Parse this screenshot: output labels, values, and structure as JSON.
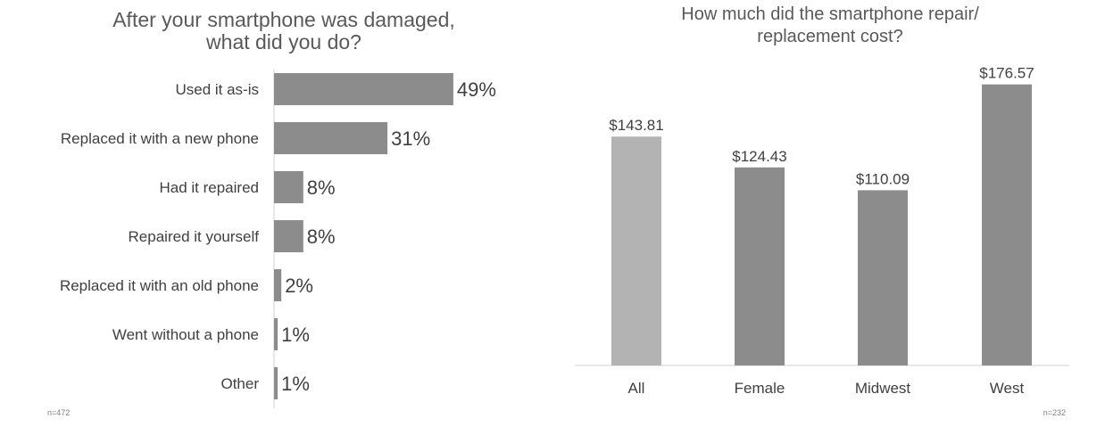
{
  "colors": {
    "bar": "#8c8c8c",
    "highlight_bar": "#b3b3b3",
    "axis": "#d0d0d0",
    "text": "#404040"
  },
  "chart_data": [
    {
      "type": "bar",
      "orientation": "horizontal",
      "title": "After your smartphone was damaged,\nwhat did you do?",
      "categories": [
        "Used it as-is",
        "Replaced it with a new phone",
        "Had it repaired",
        "Repaired it yourself",
        "Replaced it with an old phone",
        "Went without a phone",
        "Other"
      ],
      "values": [
        49,
        31,
        8,
        8,
        2,
        1,
        1
      ],
      "value_labels": [
        "49%",
        "31%",
        "8%",
        "8%",
        "2%",
        "1%",
        "1%"
      ],
      "unit": "%",
      "xlim": [
        0,
        100
      ],
      "grid": false,
      "note": "n=472"
    },
    {
      "type": "bar",
      "orientation": "vertical",
      "title": "How much did the smartphone repair/\nreplacement cost?",
      "categories": [
        "All",
        "Female",
        "Midwest",
        "West"
      ],
      "values": [
        143.81,
        124.43,
        110.09,
        176.57
      ],
      "value_labels": [
        "$143.81",
        "$124.43",
        "$110.09",
        "$176.57"
      ],
      "highlight": "All",
      "ylim": [
        0,
        182
      ],
      "grid": false,
      "note": "n=232"
    }
  ]
}
